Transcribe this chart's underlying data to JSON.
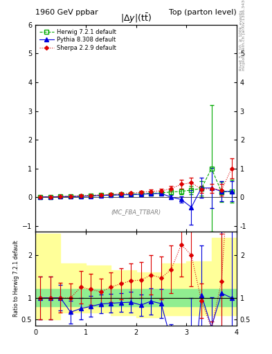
{
  "title_left": "1960 GeV ppbar",
  "title_right": "Top (parton level)",
  "plot_title": "|\\Delta y|(t\\bar{t})",
  "xlabel": "",
  "ylabel_main": "",
  "ylabel_ratio": "Ratio to Herwig 7.2.1 default",
  "watermark": "(MC_FBA_TTBAR)",
  "right_label_top": "Rivet 3.1.10, ≥ 100k events",
  "right_label_bot": "mcplots.cern.ch [arXiv:1306.3436]",
  "herwig_x": [
    0.1,
    0.3,
    0.5,
    0.7,
    0.9,
    1.1,
    1.3,
    1.5,
    1.7,
    1.9,
    2.1,
    2.3,
    2.5,
    2.7,
    2.9,
    3.1,
    3.3,
    3.5,
    3.7,
    3.9
  ],
  "herwig_y": [
    0.01,
    0.01,
    0.02,
    0.03,
    0.04,
    0.05,
    0.07,
    0.08,
    0.09,
    0.1,
    0.12,
    0.13,
    0.15,
    0.18,
    0.2,
    0.25,
    0.3,
    1.0,
    0.18,
    0.2
  ],
  "herwig_ey": [
    0.005,
    0.005,
    0.008,
    0.01,
    0.01,
    0.015,
    0.02,
    0.02,
    0.025,
    0.03,
    0.04,
    0.05,
    0.06,
    0.08,
    0.1,
    0.15,
    0.25,
    2.2,
    0.35,
    0.4
  ],
  "pythia_x": [
    0.1,
    0.3,
    0.5,
    0.7,
    0.9,
    1.1,
    1.3,
    1.5,
    1.7,
    1.9,
    2.1,
    2.3,
    2.5,
    2.7,
    2.9,
    3.1,
    3.3,
    3.5,
    3.7,
    3.9
  ],
  "pythia_y": [
    0.01,
    0.01,
    0.02,
    0.02,
    0.03,
    0.04,
    0.06,
    0.07,
    0.08,
    0.09,
    0.1,
    0.12,
    0.13,
    0.0,
    -0.08,
    -0.35,
    0.32,
    0.32,
    0.2,
    0.2
  ],
  "pythia_ey": [
    0.005,
    0.005,
    0.006,
    0.008,
    0.01,
    0.012,
    0.015,
    0.018,
    0.02,
    0.025,
    0.03,
    0.04,
    0.05,
    0.07,
    0.12,
    0.6,
    0.35,
    0.7,
    0.35,
    0.35
  ],
  "sherpa_x": [
    0.1,
    0.3,
    0.5,
    0.7,
    0.9,
    1.1,
    1.3,
    1.5,
    1.7,
    1.9,
    2.1,
    2.3,
    2.5,
    2.7,
    2.9,
    3.1,
    3.3,
    3.5,
    3.7,
    3.9
  ],
  "sherpa_y": [
    0.01,
    0.01,
    0.02,
    0.03,
    0.05,
    0.06,
    0.08,
    0.1,
    0.12,
    0.14,
    0.17,
    0.2,
    0.22,
    0.3,
    0.45,
    0.5,
    0.28,
    0.3,
    0.25,
    1.0
  ],
  "sherpa_ey": [
    0.005,
    0.005,
    0.007,
    0.01,
    0.015,
    0.018,
    0.022,
    0.028,
    0.033,
    0.04,
    0.05,
    0.06,
    0.075,
    0.1,
    0.15,
    0.18,
    0.12,
    0.15,
    0.2,
    0.35
  ],
  "herwig_color": "#00aa00",
  "pythia_color": "#0000dd",
  "sherpa_color": "#dd0000",
  "ylim_main": [
    -1.2,
    6.0
  ],
  "ylim_ratio": [
    0.35,
    2.55
  ],
  "xlim": [
    0.0,
    4.0
  ],
  "green_band_x": [
    0.0,
    0.5,
    1.0,
    1.5,
    2.0,
    2.5,
    3.0,
    3.5,
    4.0
  ],
  "green_band_lo": [
    0.8,
    0.8,
    0.8,
    0.8,
    0.8,
    0.8,
    0.8,
    0.8,
    0.8
  ],
  "green_band_hi": [
    1.2,
    1.2,
    1.2,
    1.2,
    1.2,
    1.2,
    1.2,
    1.2,
    1.2
  ],
  "yellow_band_lo": [
    0.5,
    0.65,
    0.65,
    0.6,
    0.55,
    0.6,
    0.6,
    0.6,
    0.6
  ],
  "yellow_band_hi": [
    2.5,
    1.8,
    1.75,
    1.65,
    1.6,
    1.8,
    1.85,
    2.4,
    2.4
  ]
}
